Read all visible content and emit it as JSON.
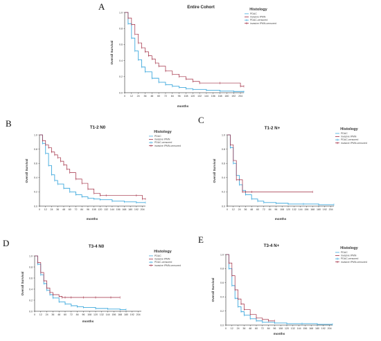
{
  "figure": {
    "colors": {
      "pdac": "#3fa9dd",
      "ipmn": "#a02a40",
      "axis": "#000000"
    }
  },
  "chart_data": [
    {
      "letter": "A",
      "type": "line",
      "title": "Entire Cohort",
      "xlabel": "months",
      "ylabel": "Overall Survival",
      "legend_title": "Histology",
      "legend": [
        "PDAC",
        "invasive IPMN",
        "PDAC-censored",
        "invasive IPMN-censored"
      ],
      "xticks": [
        0,
        12,
        24,
        36,
        48,
        60,
        72,
        84,
        96,
        108,
        120,
        132,
        144,
        156,
        168,
        180,
        192,
        204
      ],
      "yticks": [
        0.0,
        0.2,
        0.4,
        0.6,
        0.8,
        1.0
      ],
      "xlim": [
        0,
        210
      ],
      "ylim": [
        0,
        1.0
      ],
      "series": [
        {
          "name": "PDAC",
          "x": [
            0,
            6,
            12,
            18,
            24,
            30,
            36,
            48,
            60,
            72,
            84,
            96,
            108,
            120,
            144,
            168,
            192,
            210
          ],
          "y": [
            1.0,
            0.86,
            0.68,
            0.52,
            0.41,
            0.32,
            0.26,
            0.18,
            0.13,
            0.1,
            0.08,
            0.065,
            0.05,
            0.04,
            0.03,
            0.02,
            0.015,
            0.01
          ]
        },
        {
          "name": "invasive IPMN",
          "x": [
            0,
            6,
            12,
            18,
            24,
            30,
            36,
            42,
            48,
            54,
            60,
            72,
            84,
            96,
            108,
            120,
            132,
            168,
            204,
            210
          ],
          "y": [
            1.0,
            0.93,
            0.85,
            0.73,
            0.62,
            0.56,
            0.51,
            0.46,
            0.42,
            0.37,
            0.33,
            0.27,
            0.23,
            0.2,
            0.17,
            0.14,
            0.12,
            0.12,
            0.08,
            0.08
          ]
        }
      ]
    },
    {
      "letter": "B",
      "type": "line",
      "title": "T1-2 N0",
      "xlabel": "months",
      "ylabel": "Overall Survival",
      "legend_title": "Histology",
      "legend": [
        "PDAC",
        "invasive IPMN",
        "PDAC-censored",
        "invasive IPMN-censored"
      ],
      "xticks": [
        0,
        12,
        24,
        36,
        48,
        60,
        72,
        84,
        96,
        108,
        120,
        132,
        144,
        156,
        168,
        180,
        192,
        204
      ],
      "yticks": [
        0.0,
        0.2,
        0.4,
        0.6,
        0.8,
        1.0
      ],
      "xlim": [
        0,
        210
      ],
      "ylim": [
        0,
        1.0
      ],
      "series": [
        {
          "name": "PDAC",
          "x": [
            0,
            6,
            12,
            18,
            24,
            30,
            36,
            48,
            60,
            72,
            84,
            96,
            108,
            120,
            144,
            168,
            192,
            210
          ],
          "y": [
            1.0,
            0.88,
            0.74,
            0.57,
            0.44,
            0.36,
            0.31,
            0.25,
            0.2,
            0.16,
            0.13,
            0.11,
            0.1,
            0.09,
            0.07,
            0.06,
            0.05,
            0.05
          ]
        },
        {
          "name": "invasive IPMN",
          "x": [
            0,
            6,
            12,
            18,
            24,
            30,
            36,
            42,
            48,
            54,
            60,
            72,
            84,
            96,
            108,
            120,
            132,
            192,
            204,
            210
          ],
          "y": [
            1.0,
            0.92,
            0.86,
            0.82,
            0.76,
            0.72,
            0.68,
            0.63,
            0.58,
            0.52,
            0.47,
            0.38,
            0.32,
            0.24,
            0.18,
            0.15,
            0.15,
            0.15,
            0.1,
            0.1
          ]
        }
      ]
    },
    {
      "letter": "C",
      "type": "line",
      "title": "T1-2 N+",
      "xlabel": "months",
      "ylabel": "Overall Survival",
      "legend_title": "Histology",
      "legend": [
        "PDAC",
        "invasive IPMN",
        "PDAC-censored",
        "invasive IPMN-censored"
      ],
      "xticks": [
        0,
        12,
        24,
        36,
        48,
        60,
        72,
        84,
        96,
        108,
        120,
        132,
        144,
        156,
        168,
        180,
        192,
        204
      ],
      "yticks": [
        0.0,
        0.2,
        0.4,
        0.6,
        0.8,
        1.0
      ],
      "xlim": [
        0,
        210
      ],
      "ylim": [
        0,
        1.0
      ],
      "series": [
        {
          "name": "PDAC",
          "x": [
            0,
            6,
            12,
            18,
            24,
            30,
            36,
            48,
            60,
            72,
            96,
            120,
            150,
            180,
            210
          ],
          "y": [
            1.0,
            0.82,
            0.6,
            0.43,
            0.3,
            0.22,
            0.16,
            0.1,
            0.07,
            0.05,
            0.04,
            0.03,
            0.03,
            0.02,
            0.02
          ]
        },
        {
          "name": "invasive IPMN",
          "x": [
            0,
            6,
            12,
            18,
            24,
            30,
            36,
            48,
            168
          ],
          "y": [
            1.0,
            0.86,
            0.64,
            0.37,
            0.37,
            0.2,
            0.2,
            0.2,
            0.2
          ]
        }
      ]
    },
    {
      "letter": "D",
      "type": "line",
      "title": "T3-4 N0",
      "xlabel": "months",
      "ylabel": "Overall Survival",
      "legend_title": "Histology",
      "legend": [
        "PDAC",
        "invasive IPMN",
        "PDAC-censored",
        "invasive IPMN-censored"
      ],
      "xticks": [
        0,
        12,
        24,
        36,
        48,
        60,
        72,
        84,
        96,
        108,
        120,
        132,
        144,
        156,
        168,
        180,
        192,
        204
      ],
      "yticks": [
        0.0,
        0.2,
        0.4,
        0.6,
        0.8,
        1.0
      ],
      "xlim": [
        0,
        210
      ],
      "ylim": [
        0,
        1.0
      ],
      "series": [
        {
          "name": "PDAC",
          "x": [
            0,
            6,
            12,
            18,
            24,
            30,
            36,
            48,
            60,
            72,
            84,
            96,
            120,
            144,
            168,
            180
          ],
          "y": [
            1.0,
            0.85,
            0.66,
            0.5,
            0.38,
            0.3,
            0.24,
            0.17,
            0.13,
            0.1,
            0.08,
            0.07,
            0.05,
            0.04,
            0.03,
            0.03
          ]
        },
        {
          "name": "invasive IPMN",
          "x": [
            0,
            6,
            12,
            18,
            24,
            30,
            36,
            48,
            54,
            60,
            72,
            96,
            120,
            150,
            168
          ],
          "y": [
            1.0,
            0.88,
            0.7,
            0.55,
            0.42,
            0.34,
            0.3,
            0.27,
            0.25,
            0.25,
            0.25,
            0.25,
            0.25,
            0.25,
            0.25
          ]
        }
      ]
    },
    {
      "letter": "E",
      "type": "line",
      "title": "T3-4 N+",
      "xlabel": "months",
      "ylabel": "Overall Survival",
      "legend_title": "Histology",
      "legend": [
        "PDAC",
        "invasive IPMN",
        "PDAC-censored",
        "invasive IPMN-censored"
      ],
      "xticks": [
        0,
        12,
        24,
        36,
        48,
        60,
        72,
        84,
        96,
        108,
        120,
        132,
        144,
        156,
        168,
        180,
        192,
        204
      ],
      "yticks": [
        0.0,
        0.2,
        0.4,
        0.6,
        0.8,
        1.0
      ],
      "xlim": [
        0,
        210
      ],
      "ylim": [
        0,
        1.0
      ],
      "series": [
        {
          "name": "PDAC",
          "x": [
            0,
            6,
            12,
            18,
            24,
            30,
            36,
            48,
            60,
            72,
            96,
            120,
            150,
            180,
            210
          ],
          "y": [
            1.0,
            0.8,
            0.56,
            0.38,
            0.26,
            0.19,
            0.14,
            0.09,
            0.06,
            0.04,
            0.03,
            0.02,
            0.02,
            0.01,
            0.01
          ]
        },
        {
          "name": "invasive IPMN",
          "x": [
            0,
            6,
            12,
            18,
            24,
            30,
            36,
            48,
            60,
            72,
            84,
            96
          ],
          "y": [
            1.0,
            0.88,
            0.7,
            0.5,
            0.37,
            0.3,
            0.22,
            0.15,
            0.1,
            0.08,
            0.06,
            0.06
          ]
        }
      ]
    }
  ]
}
